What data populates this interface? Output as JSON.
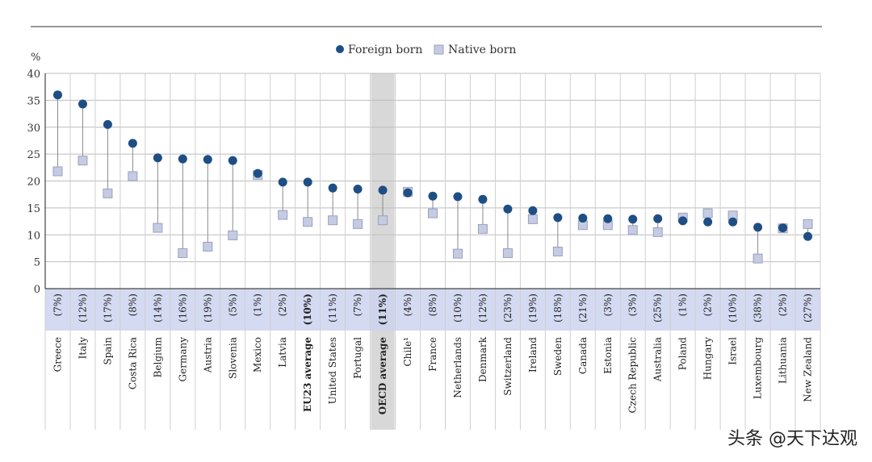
{
  "chart_data": {
    "type": "scatter",
    "title": "",
    "ylabel": "%",
    "xlabel": "",
    "ylim": [
      0,
      40
    ],
    "yticks": [
      0,
      5,
      10,
      15,
      20,
      25,
      30,
      35,
      40
    ],
    "grid": true,
    "legend": {
      "placement": "top-center",
      "entries": [
        "Foreign born",
        "Native born"
      ]
    },
    "categories": [
      "Greece",
      "Italy",
      "Spain",
      "Costa Rica",
      "Belgium",
      "Germany",
      "Austria",
      "Slovenia",
      "Mexico",
      "Latvia",
      "EU23 average",
      "United States",
      "Portugal",
      "OECD average",
      "Chile¹",
      "France",
      "Netherlands",
      "Denmark",
      "Switzerland",
      "Ireland",
      "Sweden",
      "Canada",
      "Estonia",
      "Czech Republic",
      "Australia",
      "Poland",
      "Hungary",
      "Israel",
      "Luxembourg",
      "Lithuania",
      "New Zealand"
    ],
    "shares": [
      "(7%)",
      "(12%)",
      "(17%)",
      "(8%)",
      "(14%)",
      "(16%)",
      "(19%)",
      "(5%)",
      "(1%)",
      "(2%)",
      "(10%)",
      "(11%)",
      "(7%)",
      "(11%)",
      "(4%)",
      "(8%)",
      "(10%)",
      "(12%)",
      "(23%)",
      "(19%)",
      "(18%)",
      "(21%)",
      "(3%)",
      "(3%)",
      "(25%)",
      "(1%)",
      "(2%)",
      "(10%)",
      "(38%)",
      "(2%)",
      "(27%)"
    ],
    "bold_categories": [
      "EU23 average",
      "OECD average"
    ],
    "highlight_category": "OECD average",
    "series": [
      {
        "name": "Foreign born",
        "marker": "circle",
        "color": "#1f4e85",
        "values": [
          36,
          34.3,
          30.5,
          27,
          24.3,
          24.1,
          24,
          23.8,
          21.4,
          19.8,
          19.8,
          18.7,
          18.5,
          18.3,
          17.8,
          17.2,
          17.1,
          16.6,
          14.8,
          14.5,
          13.2,
          13.1,
          13,
          12.9,
          13,
          12.6,
          12.4,
          12.4,
          11.4,
          11.3,
          9.7
        ]
      },
      {
        "name": "Native born",
        "marker": "square",
        "color": "#c5cbe3",
        "values": [
          21.8,
          23.8,
          17.7,
          20.9,
          11.3,
          6.6,
          7.8,
          9.9,
          21.1,
          13.7,
          12.4,
          12.7,
          12,
          12.7,
          18,
          14,
          6.5,
          11.1,
          6.6,
          12.9,
          6.9,
          11.8,
          11.8,
          10.9,
          10.5,
          13.2,
          14,
          13.6,
          5.6,
          11.2,
          12
        ]
      }
    ]
  },
  "watermark": "头条 @天下达观"
}
